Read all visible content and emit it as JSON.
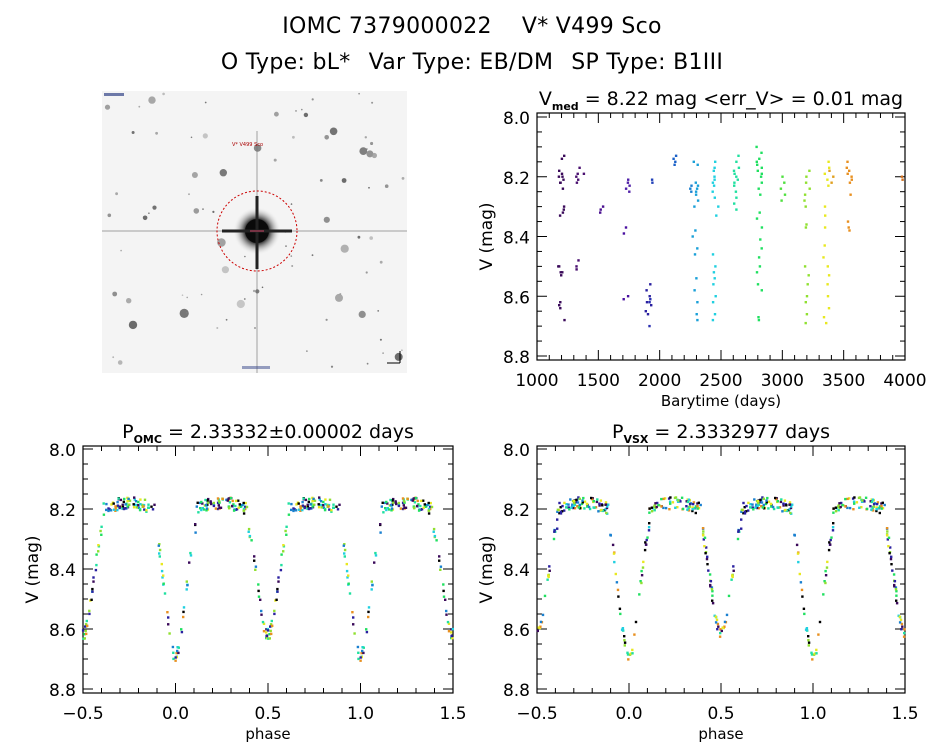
{
  "header": {
    "title_id": "IOMC 7379000022",
    "title_name": "V* V499 Sco",
    "o_type": "O Type: bL*",
    "var_type": "Var Type: EB/DM",
    "sp_type": "SP Type: B1III"
  },
  "sky_image": {
    "target_label": "V* V499 Sco",
    "circle_color": "#cc0000"
  },
  "chart_data": [
    {
      "type": "scatter",
      "title_prefix": "V",
      "title_sub": "med",
      "title_rest": " = 8.22 mag <err_V> = 0.01 mag",
      "xlabel": "Barytime (days)",
      "ylabel": "V (mag)",
      "xlim": [
        1000,
        4000
      ],
      "ylim": [
        8.0,
        8.8
      ],
      "y_inverted": true,
      "xticks": [
        "1000",
        "1500",
        "2000",
        "2500",
        "3000",
        "3500",
        "4000"
      ],
      "yticks": [
        "8.0",
        "8.2",
        "8.4",
        "8.6",
        "8.8"
      ],
      "groups": [
        {
          "t": 1200,
          "color": "#3a0a5a",
          "mags": [
            8.13,
            8.14,
            8.18,
            8.19,
            8.2,
            8.21,
            8.22,
            8.24,
            8.3,
            8.31,
            8.32,
            8.33,
            8.5,
            8.52,
            8.53,
            8.62,
            8.63,
            8.64,
            8.68
          ]
        },
        {
          "t": 1190,
          "color": "#3a0a5a",
          "mags": [
            8.2,
            8.22,
            8.5,
            8.52
          ]
        },
        {
          "t": 1335,
          "color": "#4a1070",
          "mags": [
            8.19,
            8.2,
            8.21,
            8.22,
            8.48,
            8.5,
            8.51
          ]
        },
        {
          "t": 1370,
          "color": "#4a1070",
          "mags": [
            8.17,
            8.19
          ]
        },
        {
          "t": 1530,
          "color": "#4a1090",
          "mags": [
            8.3,
            8.31,
            8.32
          ]
        },
        {
          "t": 1720,
          "color": "#4a10a0",
          "mags": [
            8.37,
            8.39,
            8.6,
            8.61
          ]
        },
        {
          "t": 1750,
          "color": "#5020a8",
          "mags": [
            8.21,
            8.22,
            8.23,
            8.24,
            8.25
          ]
        },
        {
          "t": 1910,
          "color": "#2a20a0",
          "mags": [
            8.56,
            8.58,
            8.6,
            8.62,
            8.63,
            8.65,
            8.66
          ]
        },
        {
          "t": 1930,
          "color": "#2a30b0",
          "mags": [
            8.61,
            8.62,
            8.7
          ]
        },
        {
          "t": 1945,
          "color": "#2040b8",
          "mags": [
            8.21,
            8.22
          ]
        },
        {
          "t": 2110,
          "color": "#1a60c8",
          "mags": [
            8.13,
            8.14,
            8.15,
            8.16
          ]
        },
        {
          "t": 2250,
          "color": "#1a80d0",
          "mags": [
            8.23,
            8.24,
            8.25
          ]
        },
        {
          "t": 2290,
          "color": "#1aa0d8",
          "mags": [
            8.15,
            8.16,
            8.22,
            8.23,
            8.24,
            8.25,
            8.26,
            8.28,
            8.3,
            8.38,
            8.4,
            8.44,
            8.46,
            8.54,
            8.58,
            8.62,
            8.66,
            8.68
          ]
        },
        {
          "t": 2455,
          "color": "#20d0e0",
          "mags": [
            8.15,
            8.17,
            8.18,
            8.2,
            8.21,
            8.22,
            8.23,
            8.25,
            8.27,
            8.3,
            8.33,
            8.46,
            8.5,
            8.52,
            8.54,
            8.56,
            8.6,
            8.62,
            8.66,
            8.68
          ]
        },
        {
          "t": 2630,
          "color": "#20e0a0",
          "mags": [
            8.13,
            8.15,
            8.17,
            8.18,
            8.19,
            8.2,
            8.21,
            8.22,
            8.23,
            8.25,
            8.27,
            8.29,
            8.31
          ]
        },
        {
          "t": 2810,
          "color": "#20e060",
          "mags": [
            8.1,
            8.12,
            8.14,
            8.15,
            8.16,
            8.17,
            8.18,
            8.19,
            8.2,
            8.22,
            8.24,
            8.26,
            8.32,
            8.34,
            8.37,
            8.41,
            8.44,
            8.47,
            8.5,
            8.52,
            8.56,
            8.58,
            8.67,
            8.68
          ]
        },
        {
          "t": 3010,
          "color": "#50e040",
          "mags": [
            8.2,
            8.22,
            8.24,
            8.26,
            8.28
          ]
        },
        {
          "t": 3200,
          "color": "#90e030",
          "mags": [
            8.18,
            8.2,
            8.22,
            8.24,
            8.26,
            8.28,
            8.3,
            8.36,
            8.37,
            8.5,
            8.53,
            8.56,
            8.6,
            8.62,
            8.66,
            8.69
          ]
        },
        {
          "t": 3360,
          "color": "#e8e820",
          "mags": [
            8.15,
            8.17,
            8.19,
            8.21,
            8.23,
            8.3,
            8.33,
            8.37,
            8.43,
            8.47,
            8.5,
            8.53,
            8.56,
            8.6,
            8.64,
            8.67,
            8.69
          ]
        },
        {
          "t": 3395,
          "color": "#e0a020",
          "mags": [
            8.18,
            8.2,
            8.22
          ]
        },
        {
          "t": 3545,
          "color": "#e89020",
          "mags": [
            8.15,
            8.17,
            8.18,
            8.19,
            8.2,
            8.21,
            8.22,
            8.26,
            8.35,
            8.37,
            8.38
          ]
        },
        {
          "t": 3960,
          "color": "#d07020",
          "mags": [
            8.2,
            8.21
          ]
        }
      ]
    },
    {
      "type": "scatter",
      "title_prefix": "P",
      "title_sub": "OMC",
      "title_rest": " = 2.33332±0.00002 days",
      "xlabel": "phase",
      "ylabel": "V (mag)",
      "xlim": [
        -0.5,
        1.5
      ],
      "ylim": [
        8.0,
        8.8
      ],
      "y_inverted": true,
      "xticks": [
        "−0.5",
        "0.0",
        "0.5",
        "1.0",
        "1.5"
      ],
      "yticks": [
        "8.0",
        "8.2",
        "8.4",
        "8.6",
        "8.8"
      ],
      "period_days": 2.33332,
      "period_err_days": 2e-05,
      "light_curve": {
        "max_mag": 8.18,
        "primary_min_mag": 8.69,
        "secondary_min_mag": 8.62,
        "primary_phase": 0.0,
        "secondary_phase": 0.5
      }
    },
    {
      "type": "scatter",
      "title_prefix": "P",
      "title_sub": "VSX",
      "title_rest": " = 2.3332977 days",
      "xlabel": "phase",
      "ylabel": "V (mag)",
      "xlim": [
        -0.5,
        1.5
      ],
      "ylim": [
        8.0,
        8.8
      ],
      "y_inverted": true,
      "xticks": [
        "−0.5",
        "0.0",
        "0.5",
        "1.0",
        "1.5"
      ],
      "yticks": [
        "8.0",
        "8.2",
        "8.4",
        "8.6",
        "8.8"
      ],
      "period_days": 2.3332977,
      "light_curve": {
        "max_mag": 8.18,
        "primary_min_mag": 8.69,
        "secondary_min_mag": 8.62,
        "primary_phase": 0.0,
        "secondary_phase": 0.5
      }
    }
  ],
  "palette": [
    "#3a0a5a",
    "#2a20a0",
    "#1a80d0",
    "#20d0e0",
    "#20e0a0",
    "#20e060",
    "#90e030",
    "#e8e820",
    "#e89020",
    "#000000"
  ]
}
